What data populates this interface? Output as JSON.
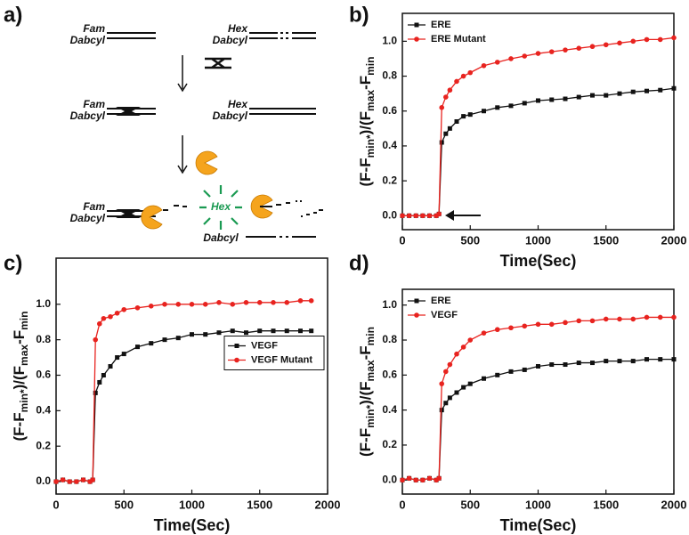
{
  "panel_labels": [
    "a)",
    "b)",
    "c)",
    "d)"
  ],
  "diagram": {
    "labels": [
      "Fam",
      "Dabcyl",
      "Hex",
      "Dabcyl",
      "Fam",
      "Dabcyl",
      "Hex",
      "Dabcyl",
      "Fam",
      "Dabcyl",
      "Hex",
      "Dabcyl"
    ]
  },
  "chart_data": [
    {
      "type": "line",
      "xlabel": "Time(Sec)",
      "ylabel": [
        "(F-F",
        "min*",
        ")/(F",
        "max",
        "-F",
        "min"
      ],
      "xlim": [
        0,
        2000
      ],
      "ylim": [
        -0.08,
        1.16
      ],
      "xticks": [
        0,
        500,
        1000,
        1500,
        2000
      ],
      "yticks": [
        {
          "value": 0,
          "label": "0.0"
        },
        {
          "value": 0.2,
          "label": "0.2"
        },
        {
          "value": 0.4,
          "label": "0.4"
        },
        {
          "value": 0.6,
          "label": "0.6"
        },
        {
          "value": 0.8,
          "label": "0.8"
        },
        {
          "value": 1,
          "label": "1.0"
        }
      ],
      "legend": "upper left",
      "x": [
        0,
        50,
        100,
        150,
        200,
        250,
        270,
        290,
        320,
        350,
        400,
        450,
        500,
        600,
        700,
        800,
        900,
        1000,
        1100,
        1200,
        1300,
        1400,
        1500,
        1600,
        1700,
        1800,
        1900,
        2000
      ],
      "series": [
        {
          "name": "ERE",
          "color": "#111111",
          "marker": "square",
          "values": [
            0,
            0,
            0,
            0,
            0,
            0,
            0.01,
            0.42,
            0.47,
            0.5,
            0.54,
            0.57,
            0.58,
            0.6,
            0.62,
            0.63,
            0.645,
            0.66,
            0.665,
            0.67,
            0.68,
            0.69,
            0.69,
            0.7,
            0.71,
            0.715,
            0.72,
            0.73
          ]
        },
        {
          "name": "ERE Mutant",
          "color": "#e8231f",
          "marker": "circle",
          "values": [
            0,
            0,
            0,
            0,
            0,
            0,
            0.01,
            0.62,
            0.68,
            0.72,
            0.77,
            0.8,
            0.82,
            0.86,
            0.88,
            0.9,
            0.915,
            0.93,
            0.94,
            0.95,
            0.96,
            0.97,
            0.98,
            0.99,
            1.0,
            1.01,
            1.01,
            1.02
          ]
        }
      ]
    },
    {
      "type": "line",
      "xlabel": "Time(Sec)",
      "ylabel": [
        "(F-F",
        "min*",
        ")/(F",
        "max",
        "-F",
        "min"
      ],
      "xlim": [
        0,
        2000
      ],
      "ylim": [
        -0.07,
        1.26
      ],
      "xticks": [
        0,
        500,
        1000,
        1500,
        2000
      ],
      "yticks": [
        {
          "value": 0,
          "label": "0.0"
        },
        {
          "value": 0.2,
          "label": "0.2"
        },
        {
          "value": 0.4,
          "label": "0.4"
        },
        {
          "value": 0.6,
          "label": "0.6"
        },
        {
          "value": 0.8,
          "label": "0.8"
        },
        {
          "value": 1,
          "label": "1.0"
        }
      ],
      "legend": "center right",
      "x": [
        0,
        50,
        100,
        150,
        200,
        250,
        270,
        290,
        320,
        350,
        400,
        450,
        500,
        600,
        700,
        800,
        900,
        1000,
        1100,
        1200,
        1300,
        1400,
        1500,
        1600,
        1700,
        1800,
        1880
      ],
      "series": [
        {
          "name": "VEGF",
          "color": "#111111",
          "marker": "square",
          "values": [
            0,
            0.01,
            0,
            0,
            0.01,
            0,
            0.01,
            0.5,
            0.56,
            0.6,
            0.65,
            0.7,
            0.72,
            0.76,
            0.78,
            0.8,
            0.81,
            0.83,
            0.83,
            0.84,
            0.85,
            0.84,
            0.85,
            0.85,
            0.85,
            0.85,
            0.85
          ]
        },
        {
          "name": "VEGF Mutant",
          "color": "#e8231f",
          "marker": "circle",
          "values": [
            0,
            0.01,
            0,
            0,
            0.01,
            0,
            0.01,
            0.8,
            0.89,
            0.92,
            0.93,
            0.95,
            0.97,
            0.98,
            0.99,
            1.0,
            1.0,
            1.0,
            1.0,
            1.01,
            1.0,
            1.01,
            1.01,
            1.01,
            1.01,
            1.02,
            1.02
          ]
        }
      ]
    },
    {
      "type": "line",
      "xlabel": "Time(Sec)",
      "ylabel": [
        "(F-F",
        "min*",
        ")/(F",
        "max",
        "-F",
        "min"
      ],
      "xlim": [
        0,
        2000
      ],
      "ylim": [
        -0.08,
        1.09
      ],
      "xticks": [
        0,
        500,
        1000,
        1500,
        2000
      ],
      "yticks": [
        {
          "value": 0,
          "label": "0.0"
        },
        {
          "value": 0.2,
          "label": "0.2"
        },
        {
          "value": 0.4,
          "label": "0.4"
        },
        {
          "value": 0.6,
          "label": "0.6"
        },
        {
          "value": 0.8,
          "label": "0.8"
        },
        {
          "value": 1,
          "label": "1.0"
        }
      ],
      "legend": "upper left",
      "x": [
        0,
        50,
        100,
        150,
        200,
        250,
        270,
        290,
        320,
        350,
        400,
        450,
        500,
        600,
        700,
        800,
        900,
        1000,
        1100,
        1200,
        1300,
        1400,
        1500,
        1600,
        1700,
        1800,
        1900,
        2000
      ],
      "series": [
        {
          "name": "ERE",
          "color": "#111111",
          "marker": "square",
          "values": [
            0,
            0.01,
            0,
            0,
            0.01,
            0,
            0.01,
            0.4,
            0.44,
            0.47,
            0.5,
            0.53,
            0.55,
            0.58,
            0.6,
            0.62,
            0.63,
            0.65,
            0.66,
            0.66,
            0.67,
            0.67,
            0.68,
            0.68,
            0.68,
            0.69,
            0.69,
            0.69
          ]
        },
        {
          "name": "VEGF",
          "color": "#e8231f",
          "marker": "circle",
          "values": [
            0,
            0.01,
            0,
            0,
            0.01,
            0,
            0.01,
            0.55,
            0.62,
            0.66,
            0.72,
            0.76,
            0.8,
            0.84,
            0.86,
            0.87,
            0.88,
            0.89,
            0.89,
            0.9,
            0.91,
            0.91,
            0.92,
            0.92,
            0.92,
            0.93,
            0.93,
            0.93
          ]
        }
      ]
    }
  ]
}
